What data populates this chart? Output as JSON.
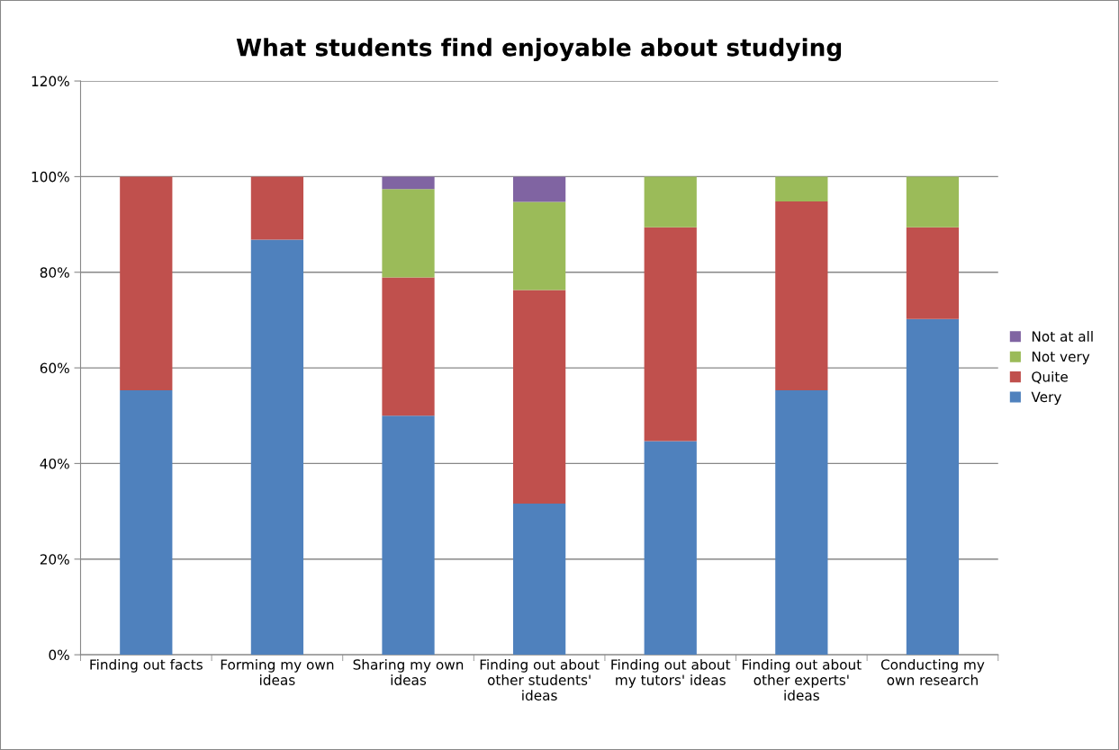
{
  "chart_data": {
    "type": "bar",
    "stacked": true,
    "title": "What students find enjoyable about studying",
    "categories": [
      "Finding out facts",
      "Forming my own\nideas",
      "Sharing my own\nideas",
      "Finding out about\nother students'\nideas",
      "Finding out about\nmy tutors' ideas",
      "Finding out about\nother experts'\nideas",
      "Conducting my\nown research"
    ],
    "series": [
      {
        "name": "Very",
        "color": "#4f81bd",
        "values": [
          55.3,
          86.8,
          50.0,
          31.6,
          44.7,
          55.3,
          70.2
        ]
      },
      {
        "name": "Quite",
        "color": "#c0504d",
        "values": [
          44.7,
          13.2,
          28.9,
          44.7,
          44.7,
          39.5,
          19.2
        ]
      },
      {
        "name": "Not very",
        "color": "#9bbb59",
        "values": [
          null,
          null,
          18.5,
          18.4,
          10.6,
          5.2,
          10.6
        ]
      },
      {
        "name": "Not at all",
        "color": "#8064a2",
        "values": [
          null,
          null,
          2.6,
          5.3,
          null,
          null,
          null
        ]
      }
    ],
    "ylim": [
      0,
      120
    ],
    "yticks": [
      {
        "value": 0,
        "label": "0%"
      },
      {
        "value": 20,
        "label": "20%"
      },
      {
        "value": 40,
        "label": "40%"
      },
      {
        "value": 60,
        "label": "60%"
      },
      {
        "value": 80,
        "label": "80%"
      },
      {
        "value": 100,
        "label": "100%"
      },
      {
        "value": 120,
        "label": "120%"
      }
    ],
    "grid": "y",
    "legend": "right"
  }
}
